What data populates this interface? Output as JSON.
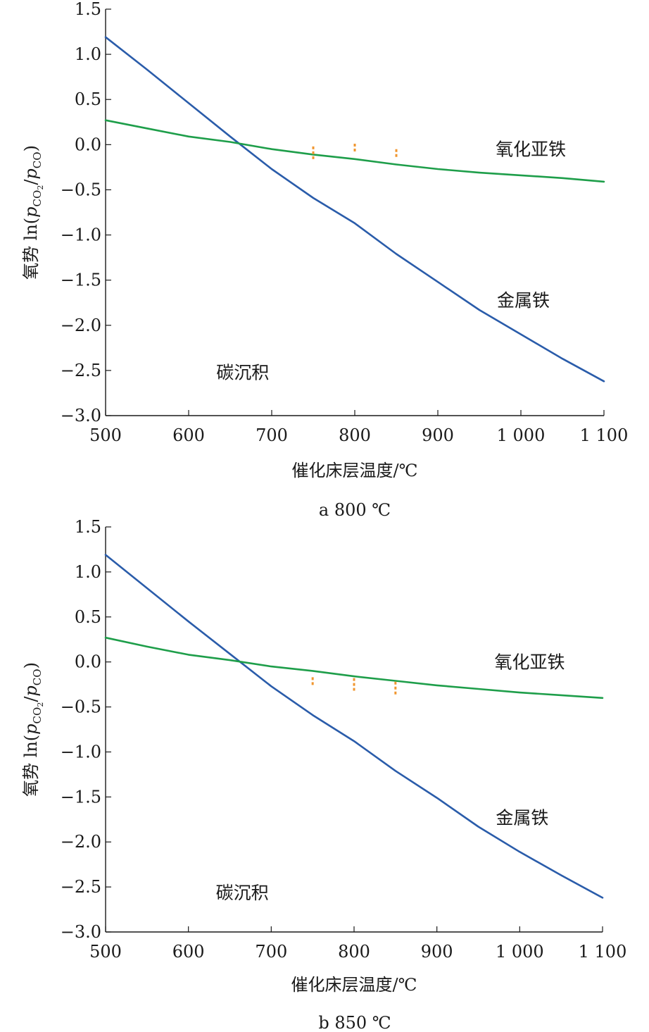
{
  "chart_data": [
    {
      "type": "line",
      "caption": "a 800 ℃",
      "xlabel": "催化床层温度/℃",
      "ylabel_prefix": "氧势 ln(",
      "ylabel_p1": "p",
      "ylabel_sub1": "CO",
      "ylabel_sub1b": "2",
      "ylabel_slash": "/",
      "ylabel_p2": "p",
      "ylabel_sub2": "CO",
      "ylabel_suffix": ")",
      "xlim": [
        500,
        1100
      ],
      "ylim": [
        -3.0,
        1.5
      ],
      "x_ticks": [
        500,
        600,
        700,
        800,
        900,
        1000,
        1100
      ],
      "x_tick_labels": [
        "500",
        "600",
        "700",
        "800",
        "900",
        "1 000",
        "1 100"
      ],
      "y_ticks": [
        1.5,
        1.0,
        0.5,
        0.0,
        -0.5,
        -1.0,
        -1.5,
        -2.0,
        -2.5,
        -3.0
      ],
      "y_tick_labels": [
        "1.5",
        "1.0",
        "0.5",
        "0.0",
        "−0.5",
        "−1.0",
        "−1.5",
        "−2.0",
        "−2.5",
        "−3.0"
      ],
      "series": [
        {
          "color": "#2a5caa",
          "x": [
            500,
            550,
            600,
            650,
            700,
            750,
            800,
            850,
            900,
            950,
            1000,
            1050,
            1100
          ],
          "y": [
            1.19,
            0.83,
            0.46,
            0.09,
            -0.27,
            -0.59,
            -0.87,
            -1.21,
            -1.52,
            -1.83,
            -2.1,
            -2.37,
            -2.62
          ]
        },
        {
          "color": "#1e9e4a",
          "x": [
            500,
            550,
            600,
            650,
            700,
            750,
            800,
            850,
            900,
            950,
            1000,
            1050,
            1100
          ],
          "y": [
            0.27,
            0.18,
            0.09,
            0.03,
            -0.05,
            -0.11,
            -0.16,
            -0.22,
            -0.27,
            -0.31,
            -0.34,
            -0.37,
            -0.41
          ]
        }
      ],
      "markers": [
        {
          "color": "#f0962f",
          "x": 750,
          "y_top": -0.02,
          "y_bottom": -0.17
        },
        {
          "color": "#f0962f",
          "x": 800,
          "y_top": 0.01,
          "y_bottom": -0.08
        },
        {
          "color": "#f0962f",
          "x": 850,
          "y_top": -0.05,
          "y_bottom": -0.15
        }
      ],
      "annotations": [
        {
          "text": "氧化亚铁",
          "x": 1012,
          "y": -0.05
        },
        {
          "text": "金属铁",
          "x": 1003,
          "y": -1.72
        },
        {
          "text": "碳沉积",
          "x": 665,
          "y": -2.52
        }
      ]
    },
    {
      "type": "line",
      "caption": "b 850 ℃",
      "xlabel": "催化床层温度/℃",
      "ylabel_prefix": "氧势 ln(",
      "ylabel_p1": "p",
      "ylabel_sub1": "CO",
      "ylabel_sub1b": "2",
      "ylabel_slash": "/",
      "ylabel_p2": "p",
      "ylabel_sub2": "CO",
      "ylabel_suffix": ")",
      "xlim": [
        500,
        1100
      ],
      "ylim": [
        -3.0,
        1.5
      ],
      "x_ticks": [
        500,
        600,
        700,
        800,
        900,
        1000,
        1100
      ],
      "x_tick_labels": [
        "500",
        "600",
        "700",
        "800",
        "900",
        "1 000",
        "1 100"
      ],
      "y_ticks": [
        1.5,
        1.0,
        0.5,
        0.0,
        -0.5,
        -1.0,
        -1.5,
        -2.0,
        -2.5,
        -3.0
      ],
      "y_tick_labels": [
        "1.5",
        "1.0",
        "0.5",
        "0.0",
        "−0.5",
        "−1.0",
        "−1.5",
        "−2.0",
        "−2.5",
        "−3.0"
      ],
      "series": [
        {
          "color": "#2a5caa",
          "x": [
            500,
            550,
            600,
            650,
            700,
            750,
            800,
            850,
            900,
            950,
            1000,
            1050,
            1100
          ],
          "y": [
            1.19,
            0.82,
            0.45,
            0.09,
            -0.27,
            -0.59,
            -0.88,
            -1.21,
            -1.51,
            -1.83,
            -2.11,
            -2.37,
            -2.62
          ]
        },
        {
          "color": "#1e9e4a",
          "x": [
            500,
            550,
            600,
            650,
            700,
            750,
            800,
            850,
            900,
            950,
            1000,
            1050,
            1100
          ],
          "y": [
            0.27,
            0.17,
            0.08,
            0.02,
            -0.05,
            -0.1,
            -0.16,
            -0.21,
            -0.26,
            -0.3,
            -0.34,
            -0.37,
            -0.4
          ]
        }
      ],
      "markers": [
        {
          "color": "#f0962f",
          "x": 750,
          "y_top": -0.17,
          "y_bottom": -0.26
        },
        {
          "color": "#f0962f",
          "x": 800,
          "y_top": -0.18,
          "y_bottom": -0.32
        },
        {
          "color": "#f0962f",
          "x": 850,
          "y_top": -0.22,
          "y_bottom": -0.37
        }
      ],
      "annotations": [
        {
          "text": "氧化亚铁",
          "x": 1012,
          "y": 0.0
        },
        {
          "text": "金属铁",
          "x": 1003,
          "y": -1.73
        },
        {
          "text": "碳沉积",
          "x": 665,
          "y": -2.56
        }
      ]
    }
  ]
}
